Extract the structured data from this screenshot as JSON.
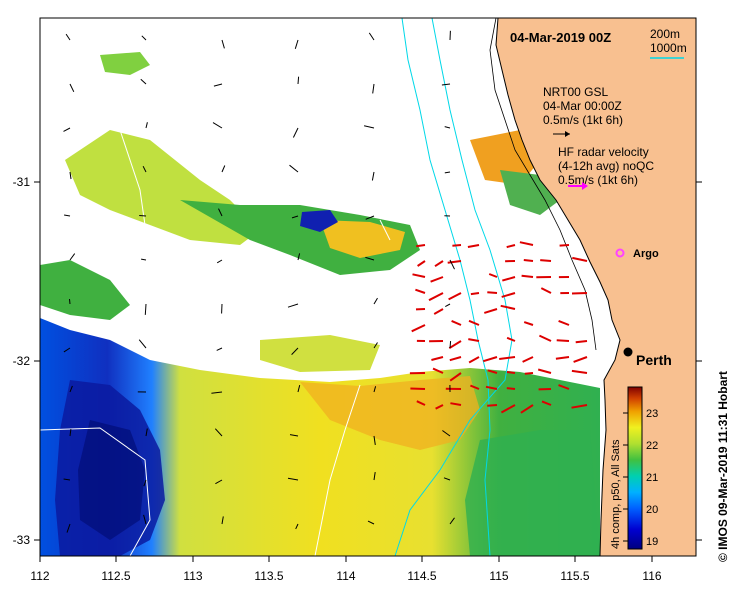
{
  "map": {
    "date_title": "04-Mar-2019 00Z",
    "depth_legend": {
      "contour_200": "200m",
      "contour_1000": "1000m",
      "color_200": "#000000",
      "color_1000": "#00e0e0"
    },
    "gsl_legend": {
      "line1": "NRT00 GSL",
      "line2": "04-Mar 00:00Z",
      "line3": "0.5m/s (1kt 6h)",
      "arrow_color": "#000000"
    },
    "hf_legend": {
      "line1": "HF radar velocity",
      "line2": "(4-12h avg) noQC",
      "line3": "0.5m/s (1kt 6h)",
      "arrow_color": "#ff00ff"
    },
    "argo_label": "Argo",
    "argo_color": "#ff44ff",
    "city_label": "Perth",
    "land_color": "#f8c090",
    "vector_color": "#dd0000",
    "credit": "© IMOS 09-Mar-2019 11:31 Hobart"
  },
  "axes": {
    "x_ticks": [
      "112",
      "112.5",
      "113",
      "113.5",
      "114",
      "114.5",
      "115",
      "115.5",
      "116"
    ],
    "y_ticks": [
      "-31",
      "-32",
      "-33"
    ]
  },
  "colorbar": {
    "title": "4h comp, p50, All Sats",
    "ticks": [
      "19",
      "20",
      "21",
      "22",
      "23"
    ],
    "range": [
      18.8,
      23.8
    ]
  }
}
